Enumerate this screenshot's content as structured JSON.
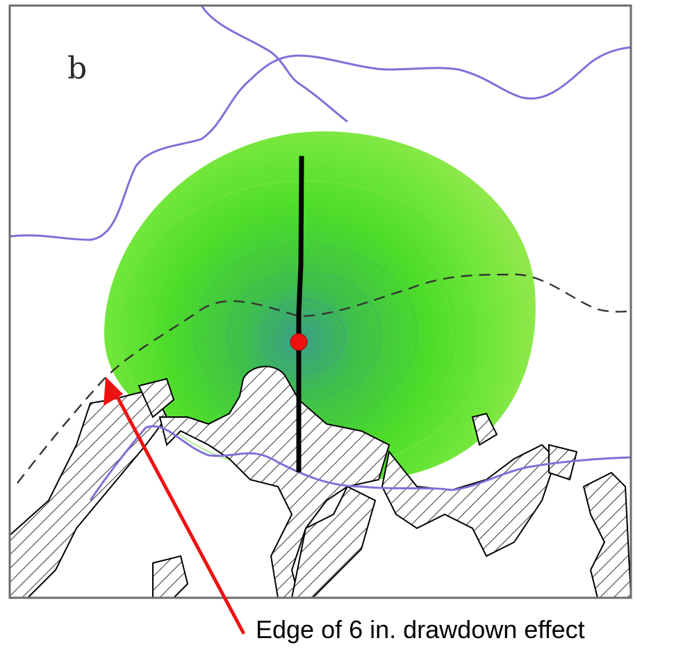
{
  "figure": {
    "panel_label": "b",
    "annotation": "Edge of 6 in. drawdown effect"
  },
  "colors": {
    "river": "#7f70d8",
    "zone_outer": "#8fe84a",
    "zone_inner": "#3fb26a",
    "well_marker": "#ee1111",
    "arrow": "#ee1111",
    "hatch": "#000000"
  },
  "legend_items": [
    "drawdown contours",
    "pumping well",
    "well line",
    "hatched wetland areas",
    "rivers",
    "dashed boundary"
  ]
}
